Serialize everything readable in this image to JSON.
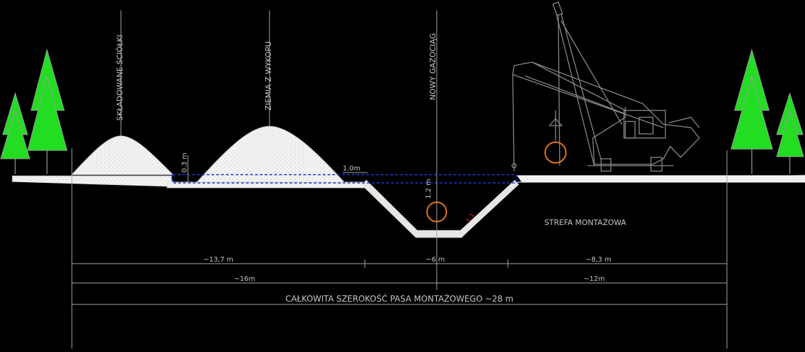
{
  "labels": {
    "litter": "SKŁADOWANE ŚCIÓŁKI",
    "soil": "ZIEMIA Z WYKOPU",
    "pipeline": "NOWY GAZOCIĄG",
    "zone": "STREFA MONTAŻOWA"
  },
  "dims": {
    "d03": "0.3 m",
    "d10": "1.0m",
    "d12": "1.2 m",
    "slope": "1:1",
    "w137": "~13,7 m",
    "w6": "~6 m",
    "w83": "~8,3 m",
    "w16": "~16m",
    "w12": "~12m",
    "total": "CAŁKOWITA SZEROKOŚĆ PASA MONTAŻOWEGO ~28 m"
  },
  "colors": {
    "background": "#000000",
    "tree": "#22dd22",
    "pipe": "#e8741e",
    "linework": "#bbbbbb",
    "topsoil_box": "#2233dd",
    "slope_mark": "#dd2222"
  }
}
